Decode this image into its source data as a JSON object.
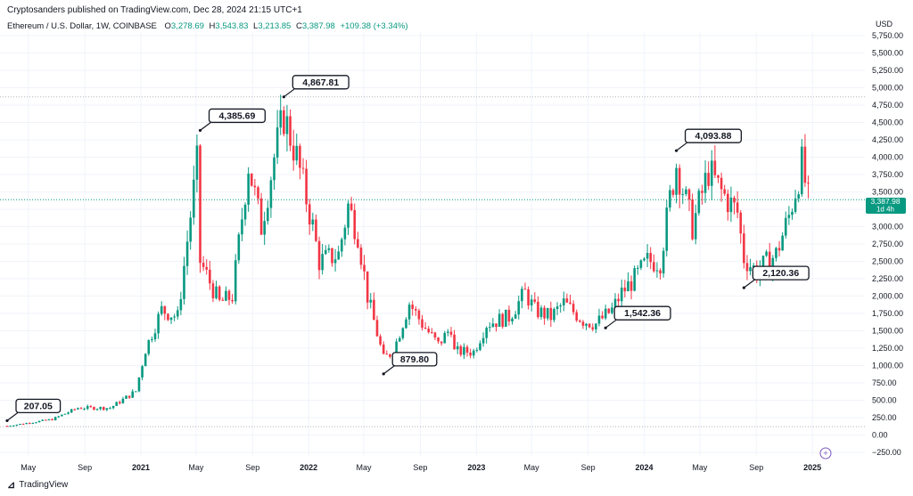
{
  "header": {
    "publisher_line": "Cryptosanders published on TradingView.com, Dec 28, 2024 21:15 UTC+1"
  },
  "legend": {
    "symbol": "Ethereum / U.S. Dollar, 1W, COINBASE",
    "o_label": "O",
    "o_value": "3,278.69",
    "h_label": "H",
    "h_value": "3,543.83",
    "l_label": "L",
    "l_value": "3,213.85",
    "c_label": "C",
    "c_value": "3,387.98",
    "change": "+109.38 (+3.34%)"
  },
  "axis": {
    "currency": "USD"
  },
  "price_badge": {
    "price": "3,387.98",
    "countdown": "1d 4h"
  },
  "footer": {
    "brand": "TradingView"
  },
  "chart_data": {
    "type": "candlestick",
    "symbol": "ETHUSD",
    "interval": "1W",
    "exchange": "COINBASE",
    "y_axis": {
      "min": -250,
      "max": 5750,
      "ticks": [
        -250,
        0,
        250,
        500,
        750,
        1000,
        1250,
        1500,
        1750,
        2000,
        2250,
        2500,
        2750,
        3000,
        3250,
        3500,
        3750,
        4000,
        4250,
        4500,
        4750,
        5000,
        5250,
        5500,
        5750
      ],
      "tick_labels": [
        "−250.00",
        "0.00",
        "250.00",
        "500.00",
        "750.00",
        "1,000.00",
        "1,250.00",
        "1,500.00",
        "1,750.00",
        "2,000.00",
        "2,250.00",
        "2,500.00",
        "2,750.00",
        "3,000.00",
        "3,250.00",
        "3,500.00",
        "3,750.00",
        "4,000.00",
        "4,250.00",
        "4,500.00",
        "4,750.00",
        "5,000.00",
        "5,250.00",
        "5,500.00",
        "5,750.00"
      ]
    },
    "x_axis": {
      "start": "2020-03-16",
      "end": "2025-02-24",
      "tick_dates": [
        "2020-05-01",
        "2020-09-01",
        "2021-01-01",
        "2021-05-01",
        "2021-09-01",
        "2022-01-01",
        "2022-05-01",
        "2022-09-01",
        "2023-01-01",
        "2023-05-01",
        "2023-09-01",
        "2024-01-01",
        "2024-05-01",
        "2024-09-01",
        "2025-01-01"
      ],
      "tick_labels": [
        "May",
        "Sep",
        "2021",
        "May",
        "Sep",
        "2022",
        "May",
        "Sep",
        "2023",
        "May",
        "Sep",
        "2024",
        "May",
        "Sep",
        "2025"
      ]
    },
    "horizontal_lines": [
      4867.81,
      120,
      3387.98
    ],
    "key_points": [
      {
        "date": "2020-03-16",
        "close": 130
      },
      {
        "date": "2020-06-22",
        "close": 225
      },
      {
        "date": "2020-08-17",
        "close": 390
      },
      {
        "date": "2020-10-26",
        "close": 390
      },
      {
        "date": "2020-12-21",
        "close": 630
      },
      {
        "date": "2021-01-11",
        "close": 1230
      },
      {
        "date": "2021-02-15",
        "close": 1800
      },
      {
        "date": "2021-03-22",
        "close": 1700
      },
      {
        "date": "2021-05-03",
        "close": 3900
      },
      {
        "date": "2021-05-10",
        "close": 2500
      },
      {
        "date": "2021-06-21",
        "close": 1900
      },
      {
        "date": "2021-07-19",
        "close": 2000
      },
      {
        "date": "2021-08-23",
        "close": 3900
      },
      {
        "date": "2021-09-20",
        "close": 3000
      },
      {
        "date": "2021-10-18",
        "close": 4000
      },
      {
        "date": "2021-11-08",
        "close": 4600
      },
      {
        "date": "2021-12-06",
        "close": 4000
      },
      {
        "date": "2022-01-10",
        "close": 3000
      },
      {
        "date": "2022-01-24",
        "close": 2500
      },
      {
        "date": "2022-03-07",
        "close": 2600
      },
      {
        "date": "2022-03-28",
        "close": 3300
      },
      {
        "date": "2022-04-18",
        "close": 2900
      },
      {
        "date": "2022-05-09",
        "close": 2000
      },
      {
        "date": "2022-06-13",
        "close": 1100
      },
      {
        "date": "2022-07-04",
        "close": 1200
      },
      {
        "date": "2022-08-08",
        "close": 1900
      },
      {
        "date": "2022-09-05",
        "close": 1600
      },
      {
        "date": "2022-10-10",
        "close": 1300
      },
      {
        "date": "2022-11-07",
        "close": 1550
      },
      {
        "date": "2022-11-14",
        "close": 1200
      },
      {
        "date": "2022-12-26",
        "close": 1200
      },
      {
        "date": "2023-01-23",
        "close": 1600
      },
      {
        "date": "2023-03-13",
        "close": 1700
      },
      {
        "date": "2023-04-17",
        "close": 2050
      },
      {
        "date": "2023-05-08",
        "close": 1800
      },
      {
        "date": "2023-06-12",
        "close": 1700
      },
      {
        "date": "2023-07-10",
        "close": 1900
      },
      {
        "date": "2023-08-21",
        "close": 1650
      },
      {
        "date": "2023-09-18",
        "close": 1600
      },
      {
        "date": "2023-10-23",
        "close": 1800
      },
      {
        "date": "2023-11-13",
        "close": 2050
      },
      {
        "date": "2023-12-11",
        "close": 2250
      },
      {
        "date": "2024-01-08",
        "close": 2500
      },
      {
        "date": "2024-02-05",
        "close": 2500
      },
      {
        "date": "2024-02-26",
        "close": 3400
      },
      {
        "date": "2024-03-11",
        "close": 3900
      },
      {
        "date": "2024-04-15",
        "close": 3000
      },
      {
        "date": "2024-05-20",
        "close": 3800
      },
      {
        "date": "2024-06-17",
        "close": 3500
      },
      {
        "date": "2024-07-22",
        "close": 3200
      },
      {
        "date": "2024-08-05",
        "close": 2550
      },
      {
        "date": "2024-09-02",
        "close": 2350
      },
      {
        "date": "2024-10-14",
        "close": 2600
      },
      {
        "date": "2024-11-11",
        "close": 3150
      },
      {
        "date": "2024-12-09",
        "close": 3900
      },
      {
        "date": "2024-12-23",
        "close": 3387.98
      }
    ],
    "annotations": [
      {
        "label": "207.05",
        "date": "2020-03-16",
        "price": 207.05
      },
      {
        "label": "4,385.69",
        "date": "2021-05-10",
        "price": 4385.69
      },
      {
        "label": "4,867.81",
        "date": "2021-11-08",
        "price": 4867.81
      },
      {
        "label": "879.80",
        "date": "2022-06-13",
        "price": 879.8
      },
      {
        "label": "1,542.36",
        "date": "2023-10-09",
        "price": 1542.36
      },
      {
        "label": "4,093.88",
        "date": "2024-03-11",
        "price": 4093.88
      },
      {
        "label": "2,120.36",
        "date": "2024-08-05",
        "price": 2120.36
      }
    ],
    "colors": {
      "up": "#089981",
      "down": "#f23645",
      "grid": "#f0f3fa",
      "dotted": "#b2b5be",
      "badge": "#089981"
    }
  }
}
